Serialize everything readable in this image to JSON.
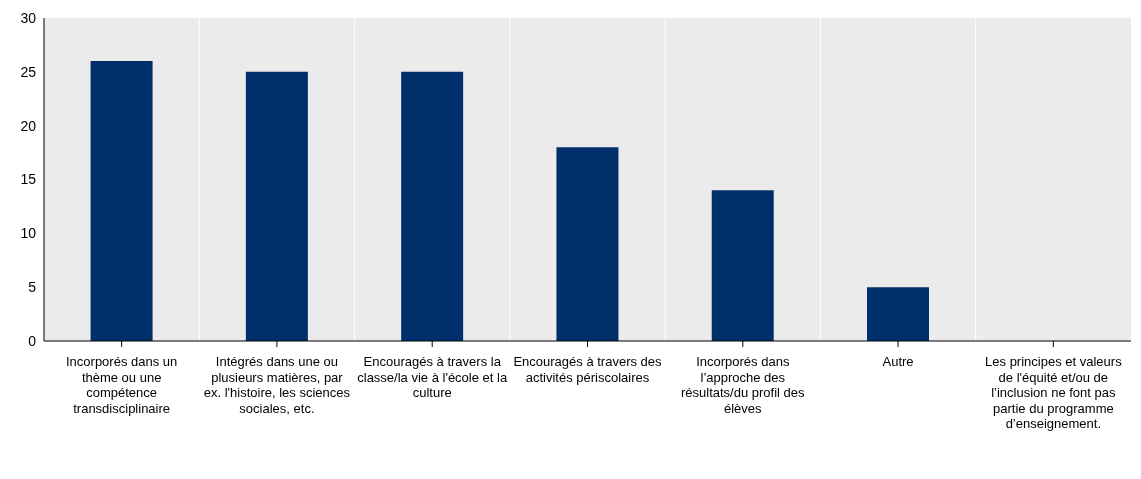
{
  "chart_data": {
    "type": "bar",
    "categories": [
      "Incorporés dans un thème ou une compétence transdisciplinaire",
      "Intégrés dans une ou plusieurs matières, par ex. l'histoire, les sciences sociales, etc.",
      "Encouragés à travers la classe/la vie à l'école et la culture",
      "Encouragés à travers des activités périscolaires",
      "Incorporés dans l’approche des résultats/du profil des élèves",
      "Autre",
      "Les principes et valeurs de l'équité et/ou de l’inclusion ne font pas partie du programme d’enseignement."
    ],
    "values": [
      26,
      25,
      25,
      18,
      14,
      5,
      0
    ],
    "color": "#002f6c",
    "ylim": [
      0,
      30
    ],
    "yticks": [
      0,
      5,
      10,
      15,
      20,
      25,
      30
    ],
    "grid": "x"
  }
}
